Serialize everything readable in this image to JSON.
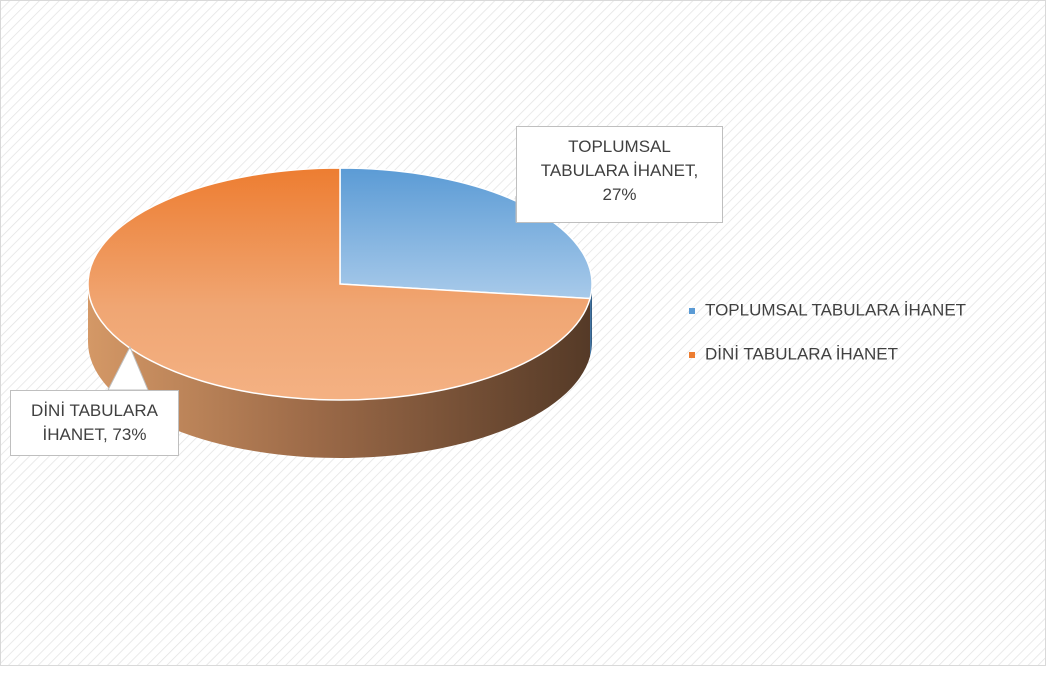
{
  "chart_data": {
    "type": "pie",
    "style": "3d",
    "categories": [
      "TOPLUMSAL TABULARA İHANET",
      "DİNİ TABULARA İHANET"
    ],
    "values": [
      27,
      73
    ],
    "value_labels": [
      "TOPLUMSAL TABULARA İHANET, 27%",
      "DİNİ TABULARA İHANET, 73%"
    ],
    "colors": [
      "#5b9bd5",
      "#ed7d31"
    ],
    "legend": "right"
  }
}
